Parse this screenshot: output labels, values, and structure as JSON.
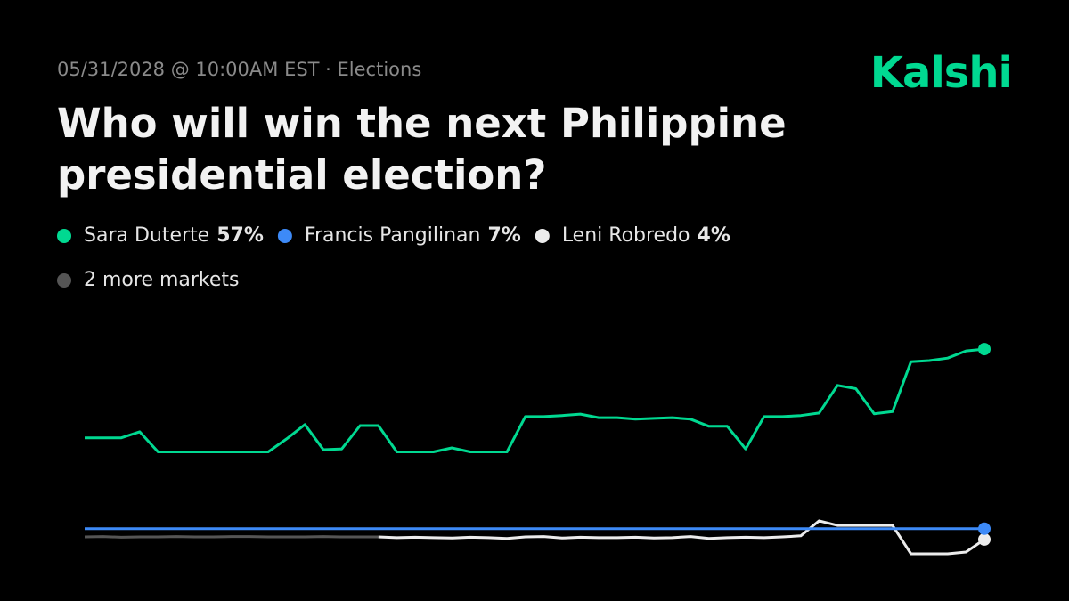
{
  "brand": "Kalshi",
  "meta": "05/31/2028 @ 10:00AM EST · Elections",
  "chart_data": {
    "type": "line",
    "title": "Who will win the next Philippine presidential election?",
    "ylim": [
      0,
      60
    ],
    "series": [
      {
        "name": "Sara Duterte",
        "label": "57%",
        "color": "#00d991",
        "values": [
          32.3,
          32.3,
          32.3,
          34,
          28.4,
          28.4,
          28.4,
          28.4,
          28.4,
          28.4,
          28.4,
          32,
          36,
          29,
          29.2,
          35.7,
          35.7,
          28.4,
          28.4,
          28.4,
          29.5,
          28.4,
          28.4,
          28.4,
          38.2,
          38.2,
          38.5,
          38.9,
          37.9,
          37.9,
          37.5,
          37.7,
          37.9,
          37.5,
          35.5,
          35.5,
          29.2,
          38.2,
          38.2,
          38.5,
          39.2,
          46.9,
          46,
          39,
          39.6,
          53.5,
          53.8,
          54.5,
          56.5,
          57
        ]
      },
      {
        "name": "Francis Pangilinan",
        "label": "7%",
        "color": "#3d8af7",
        "values": [
          7,
          7,
          7,
          7,
          7,
          7,
          7,
          7,
          7,
          7,
          7,
          7,
          7,
          7,
          7,
          7,
          7,
          7,
          7,
          7,
          7,
          7,
          7,
          7,
          7,
          7,
          7,
          7,
          7,
          7,
          7,
          7,
          7,
          7,
          7,
          7,
          7,
          7,
          7,
          7,
          7,
          7,
          7,
          7,
          7,
          7,
          7,
          7,
          7,
          7
        ]
      },
      {
        "name": "Leni Robredo",
        "label": "4%",
        "color": "#ececec",
        "values": [
          null,
          null,
          null,
          null,
          null,
          null,
          null,
          null,
          null,
          null,
          null,
          null,
          null,
          null,
          null,
          null,
          4.7,
          4.5,
          4.6,
          4.5,
          4.4,
          4.6,
          4.5,
          4.3,
          4.7,
          4.8,
          4.4,
          4.6,
          4.5,
          4.5,
          4.6,
          4.4,
          4.5,
          4.8,
          4.3,
          4.5,
          4.6,
          4.5,
          4.7,
          5,
          9.2,
          7.9,
          7.9,
          7.9,
          7.9,
          0,
          0,
          0,
          0.5,
          4
        ]
      },
      {
        "name": "2 more markets",
        "color": "#555555",
        "values": [
          4.7,
          4.8,
          4.6,
          4.7,
          4.7,
          4.8,
          4.7,
          4.7,
          4.8,
          4.8,
          4.7,
          4.7,
          4.7,
          4.8,
          4.7,
          4.7,
          4.7
        ]
      }
    ]
  }
}
